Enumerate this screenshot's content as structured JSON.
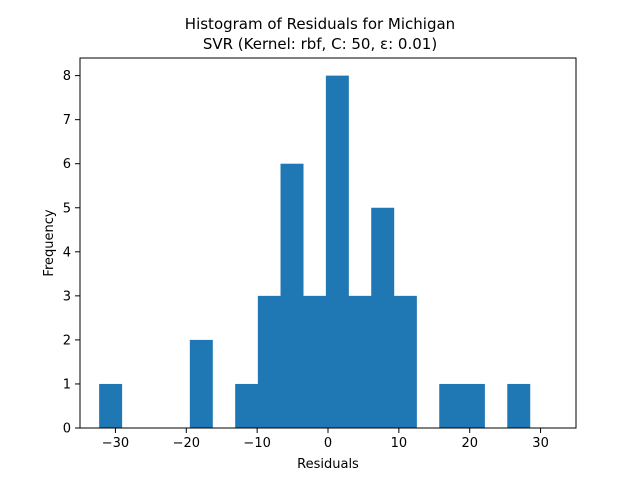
{
  "chart_data": {
    "type": "bar",
    "title": "Histogram of Residuals for Michigan",
    "subtitle": "SVR (Kernel: rbf, C: 50, ε: 0.01)",
    "xlabel": "Residuals",
    "ylabel": "Frequency",
    "xlim": [
      -35,
      35
    ],
    "ylim": [
      0,
      8.4
    ],
    "xticks": [
      -30,
      -20,
      -10,
      0,
      10,
      20,
      30
    ],
    "xtick_labels": [
      "−30",
      "−20",
      "−10",
      "0",
      "10",
      "20",
      "30"
    ],
    "yticks": [
      0,
      1,
      2,
      3,
      4,
      5,
      6,
      7,
      8
    ],
    "ytick_labels": [
      "0",
      "1",
      "2",
      "3",
      "4",
      "5",
      "6",
      "7",
      "8"
    ],
    "bin_start": -32.3,
    "bin_width": 3.2,
    "counts": [
      1,
      0,
      0,
      0,
      2,
      0,
      1,
      3,
      6,
      3,
      8,
      3,
      5,
      3,
      0,
      1,
      1,
      0,
      1
    ],
    "bar_color": "#1f77b4",
    "grid": false,
    "legend": "none"
  }
}
